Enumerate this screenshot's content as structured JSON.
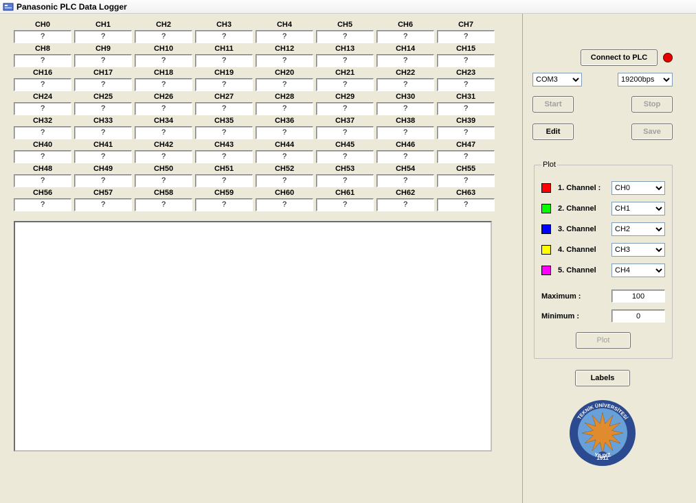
{
  "window": {
    "title": "Panasonic PLC Data Logger"
  },
  "channels": {
    "count": 64,
    "label_prefix": "CH",
    "value_placeholder": "?"
  },
  "connection": {
    "connect_label": "Connect to PLC",
    "led_color": "#e60000",
    "port_selected": "COM3",
    "baud_selected": "19200bps",
    "start_label": "Start",
    "stop_label": "Stop",
    "edit_label": "Edit",
    "save_label": "Save",
    "start_enabled": false,
    "stop_enabled": false,
    "save_enabled": false
  },
  "plot_panel": {
    "legend": "Plot",
    "channels": [
      {
        "color": "#ff0000",
        "label": "1. Channel :",
        "selected": "CH0"
      },
      {
        "color": "#00ff00",
        "label": "2. Channel",
        "selected": "CH1"
      },
      {
        "color": "#0000ff",
        "label": "3. Channel",
        "selected": "CH2"
      },
      {
        "color": "#ffff00",
        "label": "4. Channel",
        "selected": "CH3"
      },
      {
        "color": "#ff00ff",
        "label": "5. Channel",
        "selected": "CH4"
      }
    ],
    "max_label": "Maximum :",
    "max_value": "100",
    "min_label": "Minimum  :",
    "min_value": "0",
    "plot_button": "Plot",
    "plot_enabled": false
  },
  "labels_button": "Labels",
  "logo": {
    "ring_outer": "#2b4a8f",
    "ring_inner": "#6aa0d8",
    "center": "#e08b2e",
    "text_color": "#ffffff",
    "top_text": "TEKNİK ÜNİVERSİTESİ",
    "bottom_text": "YILDIZ",
    "year": "1911"
  }
}
